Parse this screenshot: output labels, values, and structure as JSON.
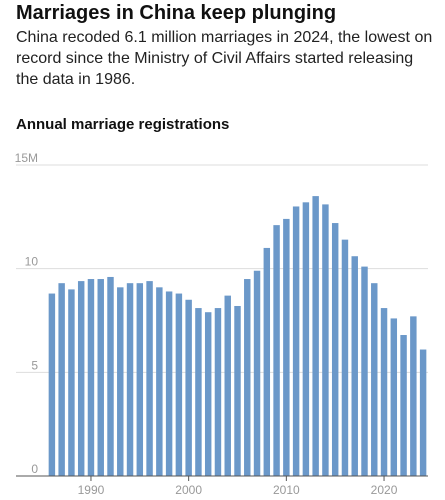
{
  "chart_data": {
    "type": "bar",
    "title": "Marriages in China keep plunging",
    "subtitle": "China recoded 6.1 million marriages in 2024, the lowest on record since the Ministry of Civil Affairs started releasing the data in 1986.",
    "chart_title": "Annual marriage registrations",
    "x": [
      1986,
      1987,
      1988,
      1989,
      1990,
      1991,
      1992,
      1993,
      1994,
      1995,
      1996,
      1997,
      1998,
      1999,
      2000,
      2001,
      2002,
      2003,
      2004,
      2005,
      2006,
      2007,
      2008,
      2009,
      2010,
      2011,
      2012,
      2013,
      2014,
      2015,
      2016,
      2017,
      2018,
      2019,
      2020,
      2021,
      2022,
      2023,
      2024
    ],
    "values": [
      8.8,
      9.3,
      9.0,
      9.4,
      9.5,
      9.5,
      9.6,
      9.1,
      9.3,
      9.3,
      9.4,
      9.1,
      8.9,
      8.8,
      8.5,
      8.1,
      7.9,
      8.1,
      8.7,
      8.2,
      9.5,
      9.9,
      11.0,
      12.1,
      12.4,
      13.0,
      13.2,
      13.5,
      13.1,
      12.2,
      11.4,
      10.6,
      10.1,
      9.3,
      8.1,
      7.6,
      6.8,
      7.7,
      6.1
    ],
    "color": "#6b98c9",
    "xlim": [
      1985.5,
      2024.5
    ],
    "xticks": [
      1990,
      2000,
      2010,
      2020
    ],
    "ylim": [
      0,
      15
    ],
    "yticks": [
      0,
      5,
      10,
      {
        "value": 15,
        "label": "15M"
      }
    ],
    "grid": true
  }
}
